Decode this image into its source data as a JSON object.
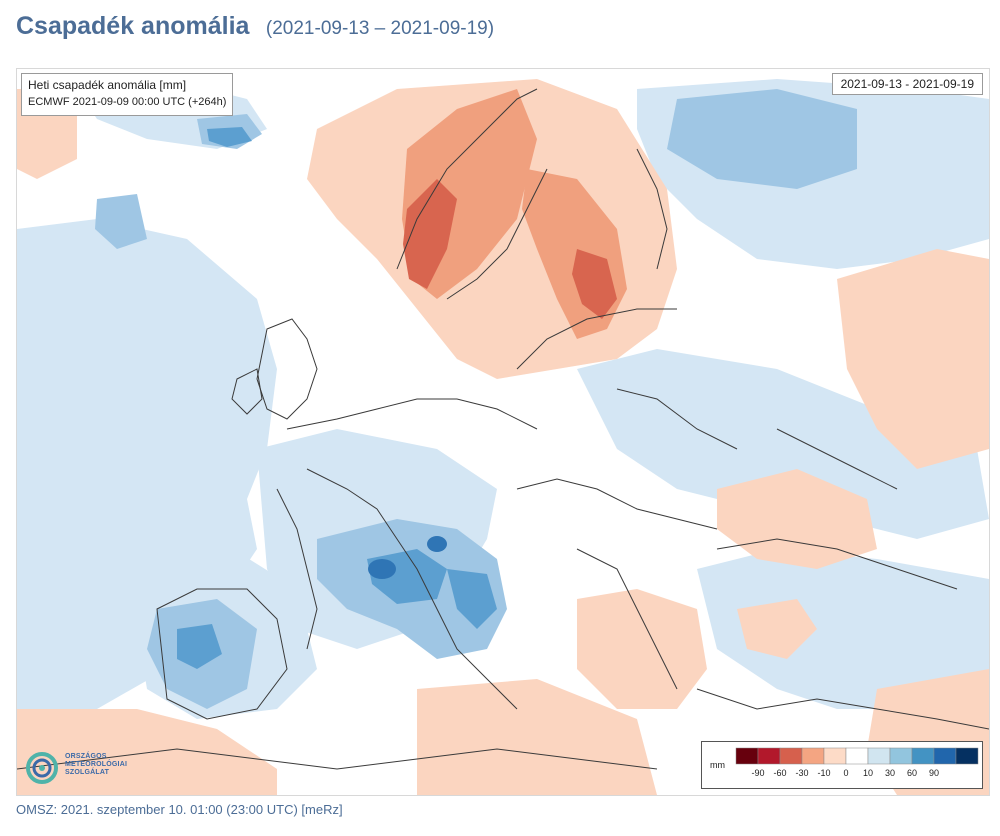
{
  "header": {
    "title": "Csapadék anomália",
    "period": "(2021-09-13 – 2021-09-19)"
  },
  "map": {
    "info_line1": "Heti csapadék anomália [mm]",
    "info_line2": "ECMWF 2021-09-09 00:00 UTC (+264h)",
    "date_range": "2021-09-13 - 2021-09-19"
  },
  "logo": {
    "line1": "ORSZÁGOS",
    "line2": "METEOROLÓGIAI",
    "line3": "SZOLGÁLAT"
  },
  "legend": {
    "unit": "mm",
    "ticks": [
      "-90",
      "-60",
      "-30",
      "-10",
      "0",
      "10",
      "30",
      "60",
      "90"
    ],
    "colors": [
      "#67000d",
      "#b2182b",
      "#d6604d",
      "#f4a582",
      "#fddbc7",
      "#ffffff",
      "#d1e5f0",
      "#92c5de",
      "#4393c3",
      "#2166ac",
      "#053061"
    ]
  },
  "footer": {
    "text": "OMSZ: 2021. szeptember 10. 01:00 (23:00  UTC)  [meRz]"
  }
}
